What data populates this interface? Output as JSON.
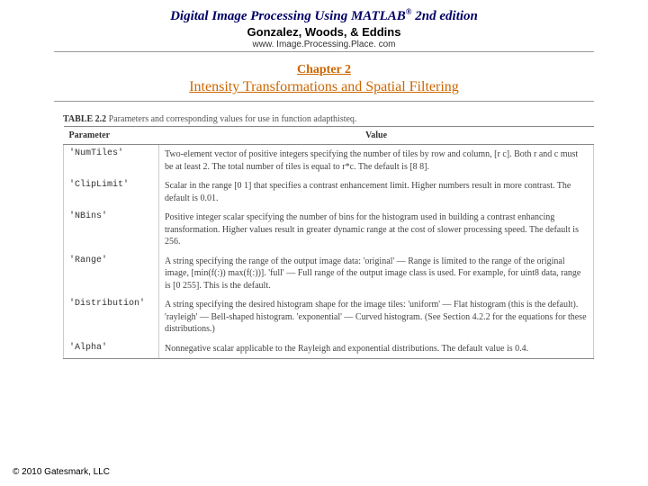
{
  "header": {
    "title_prefix": "Digital Image Processing Using MATLAB",
    "title_sup": "®",
    "title_suffix": " 2nd edition",
    "authors": "Gonzalez, Woods, & Eddins",
    "url": "www. Image.Processing.Place. com"
  },
  "chapter": {
    "num": "Chapter 2",
    "title": "Intensity Transformations and Spatial Filtering"
  },
  "table": {
    "caption_label": "TABLE 2.2",
    "caption_text": " Parameters and corresponding values for use in function adapthisteq.",
    "headers": {
      "param": "Parameter",
      "value": "Value"
    },
    "rows": [
      {
        "param": "'NumTiles'",
        "value": "Two-element vector of positive integers specifying the number of tiles by row and column, [r c]. Both r and c must be at least 2. The total number of tiles is equal to r*c. The default is [8 8]."
      },
      {
        "param": "'ClipLimit'",
        "value": "Scalar in the range [0 1] that specifies a contrast enhancement limit. Higher numbers result in more contrast. The default is 0.01."
      },
      {
        "param": "'NBins'",
        "value": "Positive integer scalar specifying the number of bins for the histogram used in building a contrast enhancing transformation. Higher values result in greater dynamic range at the cost of slower processing speed. The default is 256."
      },
      {
        "param": "'Range'",
        "value": "A string specifying the range of the output image data:\n  'original' — Range is limited to the range of the original image, [min(f(:)) max(f(:))].\n  'full' — Full range of the output image class is used. For example, for uint8 data, range is [0 255]. This is the default."
      },
      {
        "param": "'Distribution'",
        "value": "A string specifying the desired histogram shape for the image tiles:\n  'uniform' — Flat histogram (this is the default).\n  'rayleigh' — Bell-shaped histogram.\n  'exponential' — Curved histogram.\n(See Section 4.2.2 for the equations for these distributions.)"
      },
      {
        "param": "'Alpha'",
        "value": "Nonnegative scalar applicable to the Rayleigh and exponential distributions. The default value is 0.4."
      }
    ]
  },
  "footer": "© 2010 Gatesmark, LLC"
}
